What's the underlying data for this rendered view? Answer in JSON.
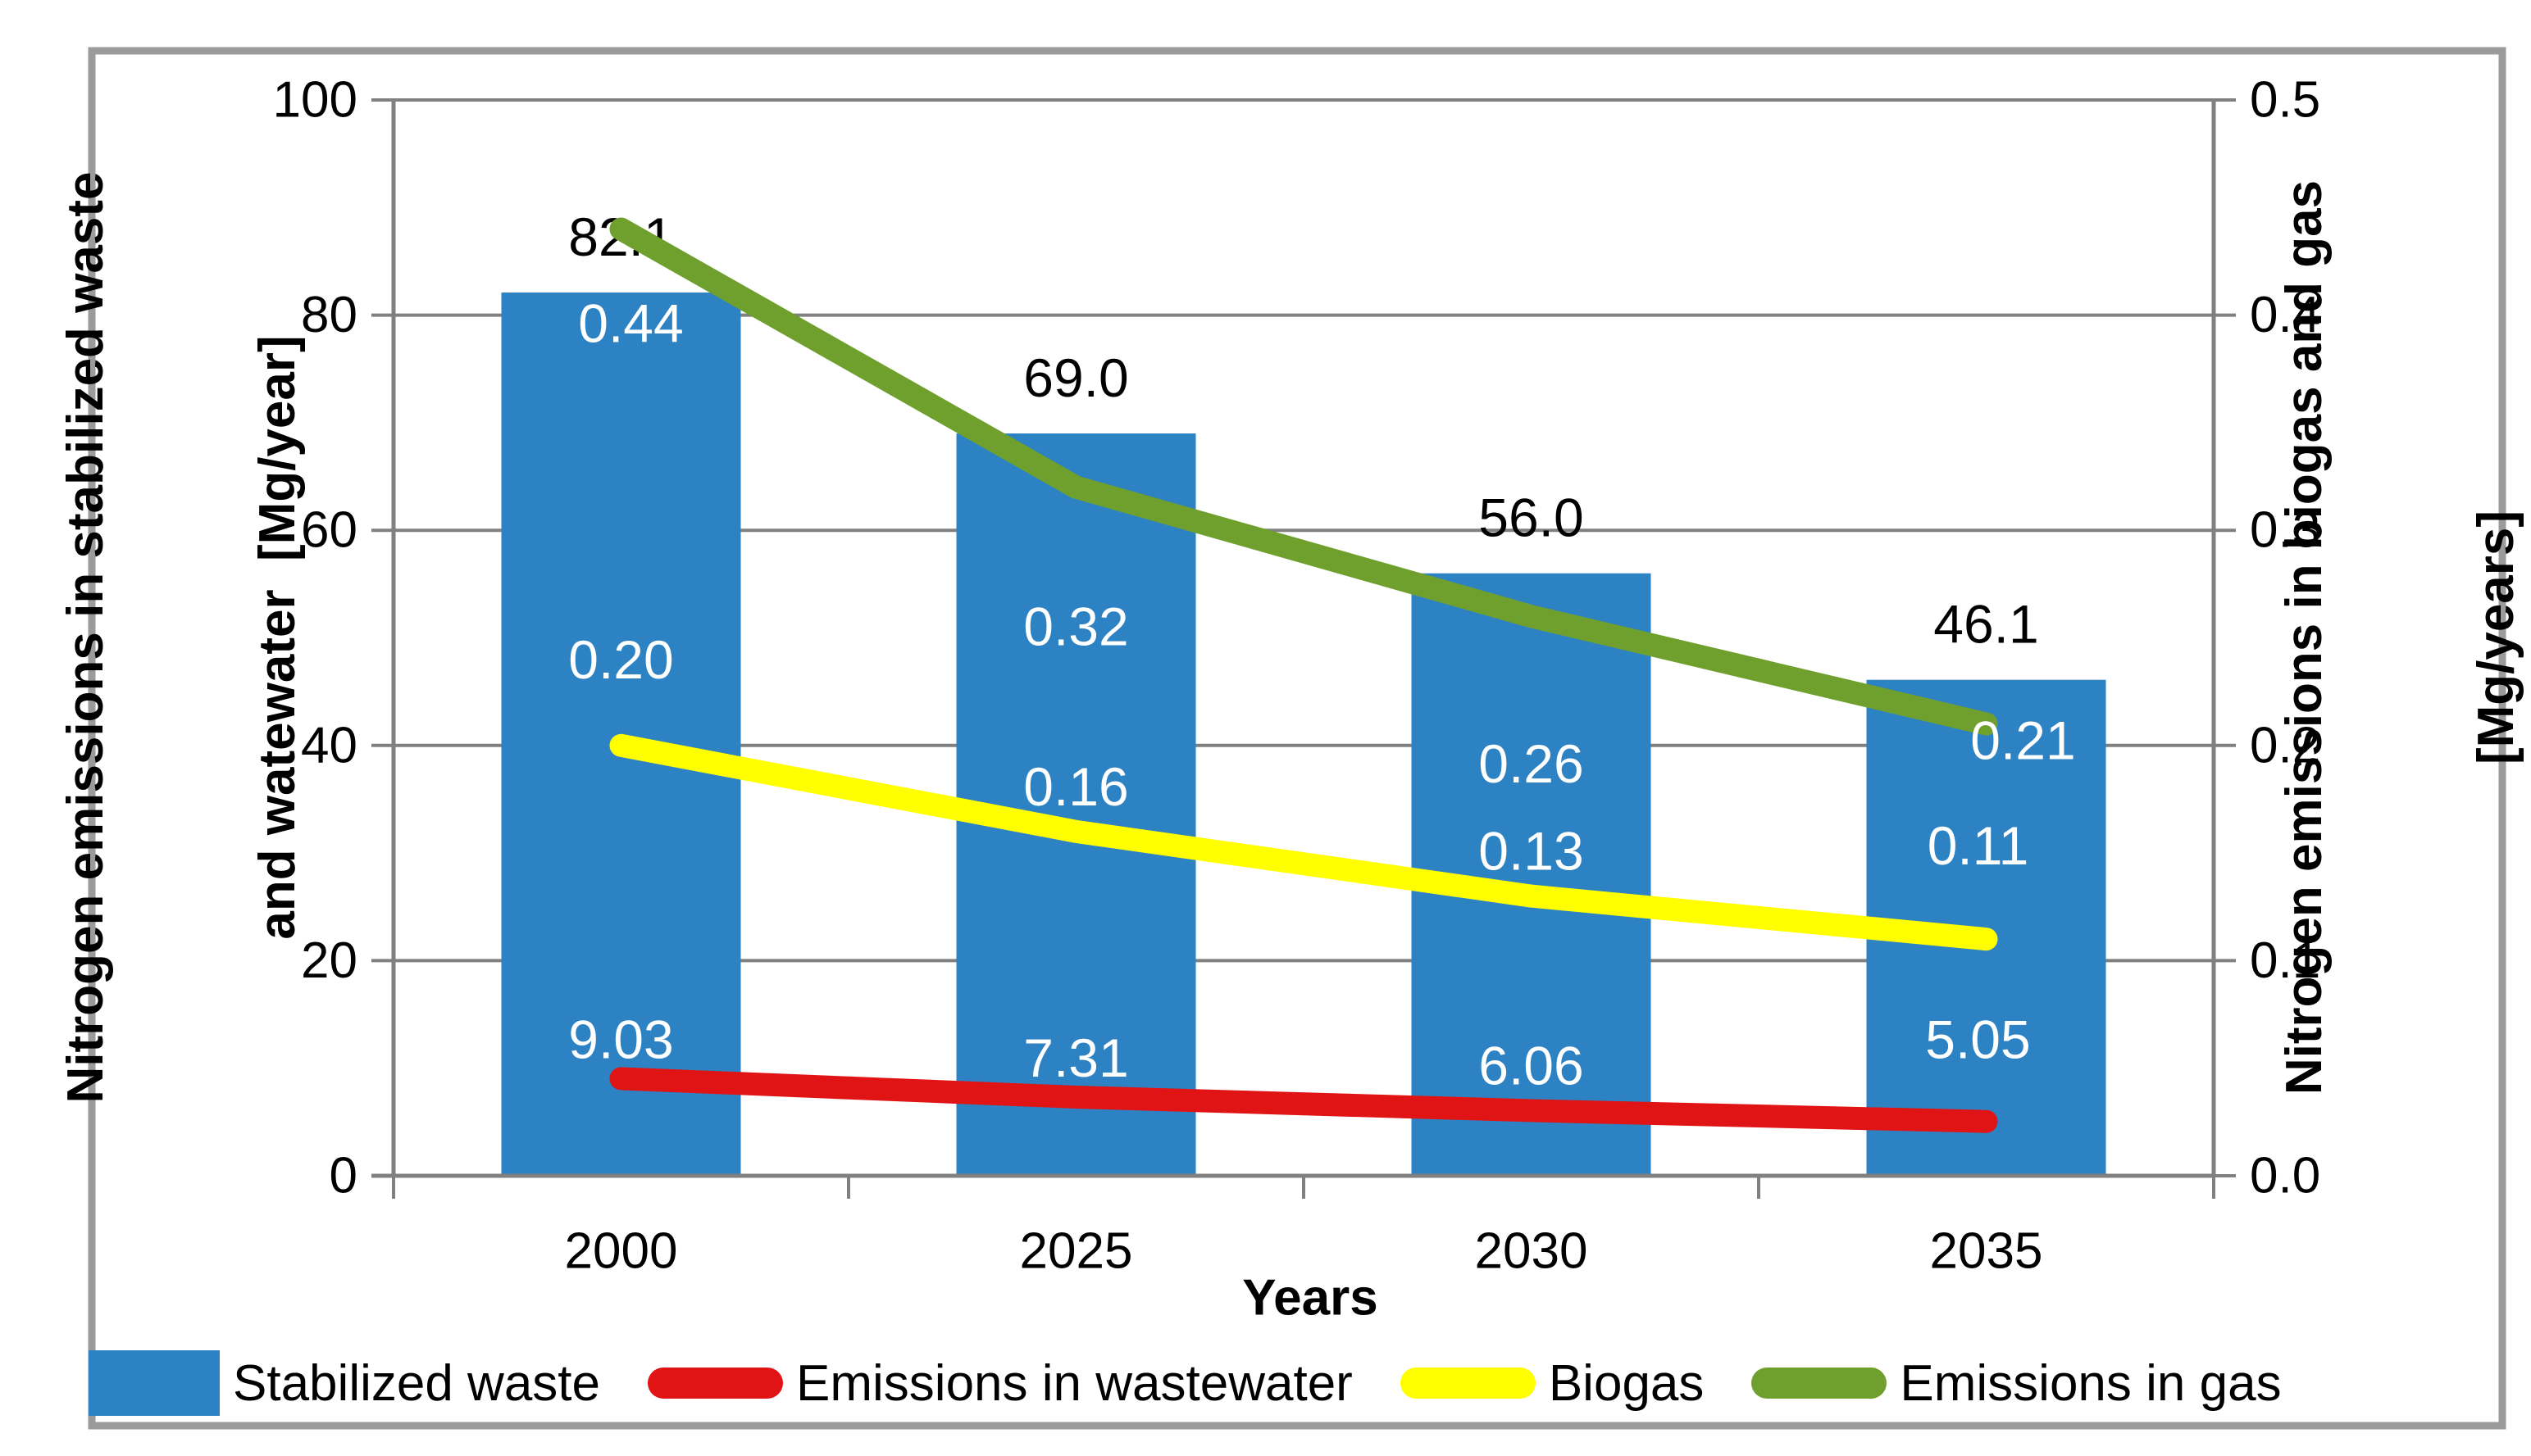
{
  "chart_data": {
    "type": "combo-bar-line",
    "categories": [
      "2000",
      "2025",
      "2030",
      "2035"
    ],
    "x_axis": {
      "title": "Years"
    },
    "left_axis": {
      "title_line1": "Nitrogen emissions in stabilized waste",
      "title_line2": "and watewater  [Mg/year]",
      "min": 0,
      "max": 100,
      "tick_step": 20,
      "ticks": [
        "0",
        "20",
        "40",
        "60",
        "80",
        "100"
      ]
    },
    "right_axis": {
      "title_line1": "Nitrogen emissions in biogas and gas",
      "title_line2": "[Mg/years]",
      "min": 0,
      "max": 0.5,
      "tick_step": 0.1,
      "ticks": [
        "0.0",
        "0.1",
        "0.2",
        "0.3",
        "0.4",
        "0.5"
      ]
    },
    "grid": true,
    "legend_position": "bottom",
    "colors": {
      "grid_gray": "#808080",
      "frame_gray": "#9B9B9B",
      "bar_label_text": "#000000",
      "line_label_text": "#FFFFFF"
    },
    "series": [
      {
        "name": "Stabilized waste",
        "type": "bar",
        "axis": "left",
        "color": "#2D82C3",
        "values": [
          82.1,
          69.0,
          56.0,
          46.1
        ],
        "labels": [
          "82.1",
          "69.0",
          "56.0",
          "46.1"
        ],
        "label_dx": [
          0,
          0,
          0,
          0
        ],
        "label_dy": [
          -68,
          -68,
          -68,
          -68
        ]
      },
      {
        "name": "Emissions in wastewater",
        "type": "line",
        "axis": "left",
        "color": "#E01414",
        "values": [
          9.03,
          7.31,
          6.06,
          5.05
        ],
        "labels": [
          "9.03",
          "7.31",
          "6.06",
          "5.05"
        ],
        "label_dx": [
          0,
          0,
          0,
          -10
        ],
        "label_dy": [
          -48,
          -48,
          -55,
          -100
        ]
      },
      {
        "name": "Biogas",
        "type": "line",
        "axis": "right",
        "color": "#FFFF00",
        "values": [
          0.2,
          0.16,
          0.13,
          0.11
        ],
        "labels": [
          "0.20",
          "0.16",
          "0.13",
          "0.11"
        ],
        "label_dx": [
          0,
          0,
          0,
          -10
        ],
        "label_dy": [
          -105,
          -55,
          -55,
          -114
        ]
      },
      {
        "name": "Emissions in gas",
        "type": "line",
        "axis": "right",
        "color": "#6FA02E",
        "values": [
          0.44,
          0.32,
          0.26,
          0.21
        ],
        "labels": [
          "0.44",
          "0.32",
          "0.26",
          "0.21"
        ],
        "label_dx": [
          12,
          0,
          0,
          45
        ],
        "label_dy": [
          115,
          170,
          180,
          20
        ]
      }
    ]
  }
}
